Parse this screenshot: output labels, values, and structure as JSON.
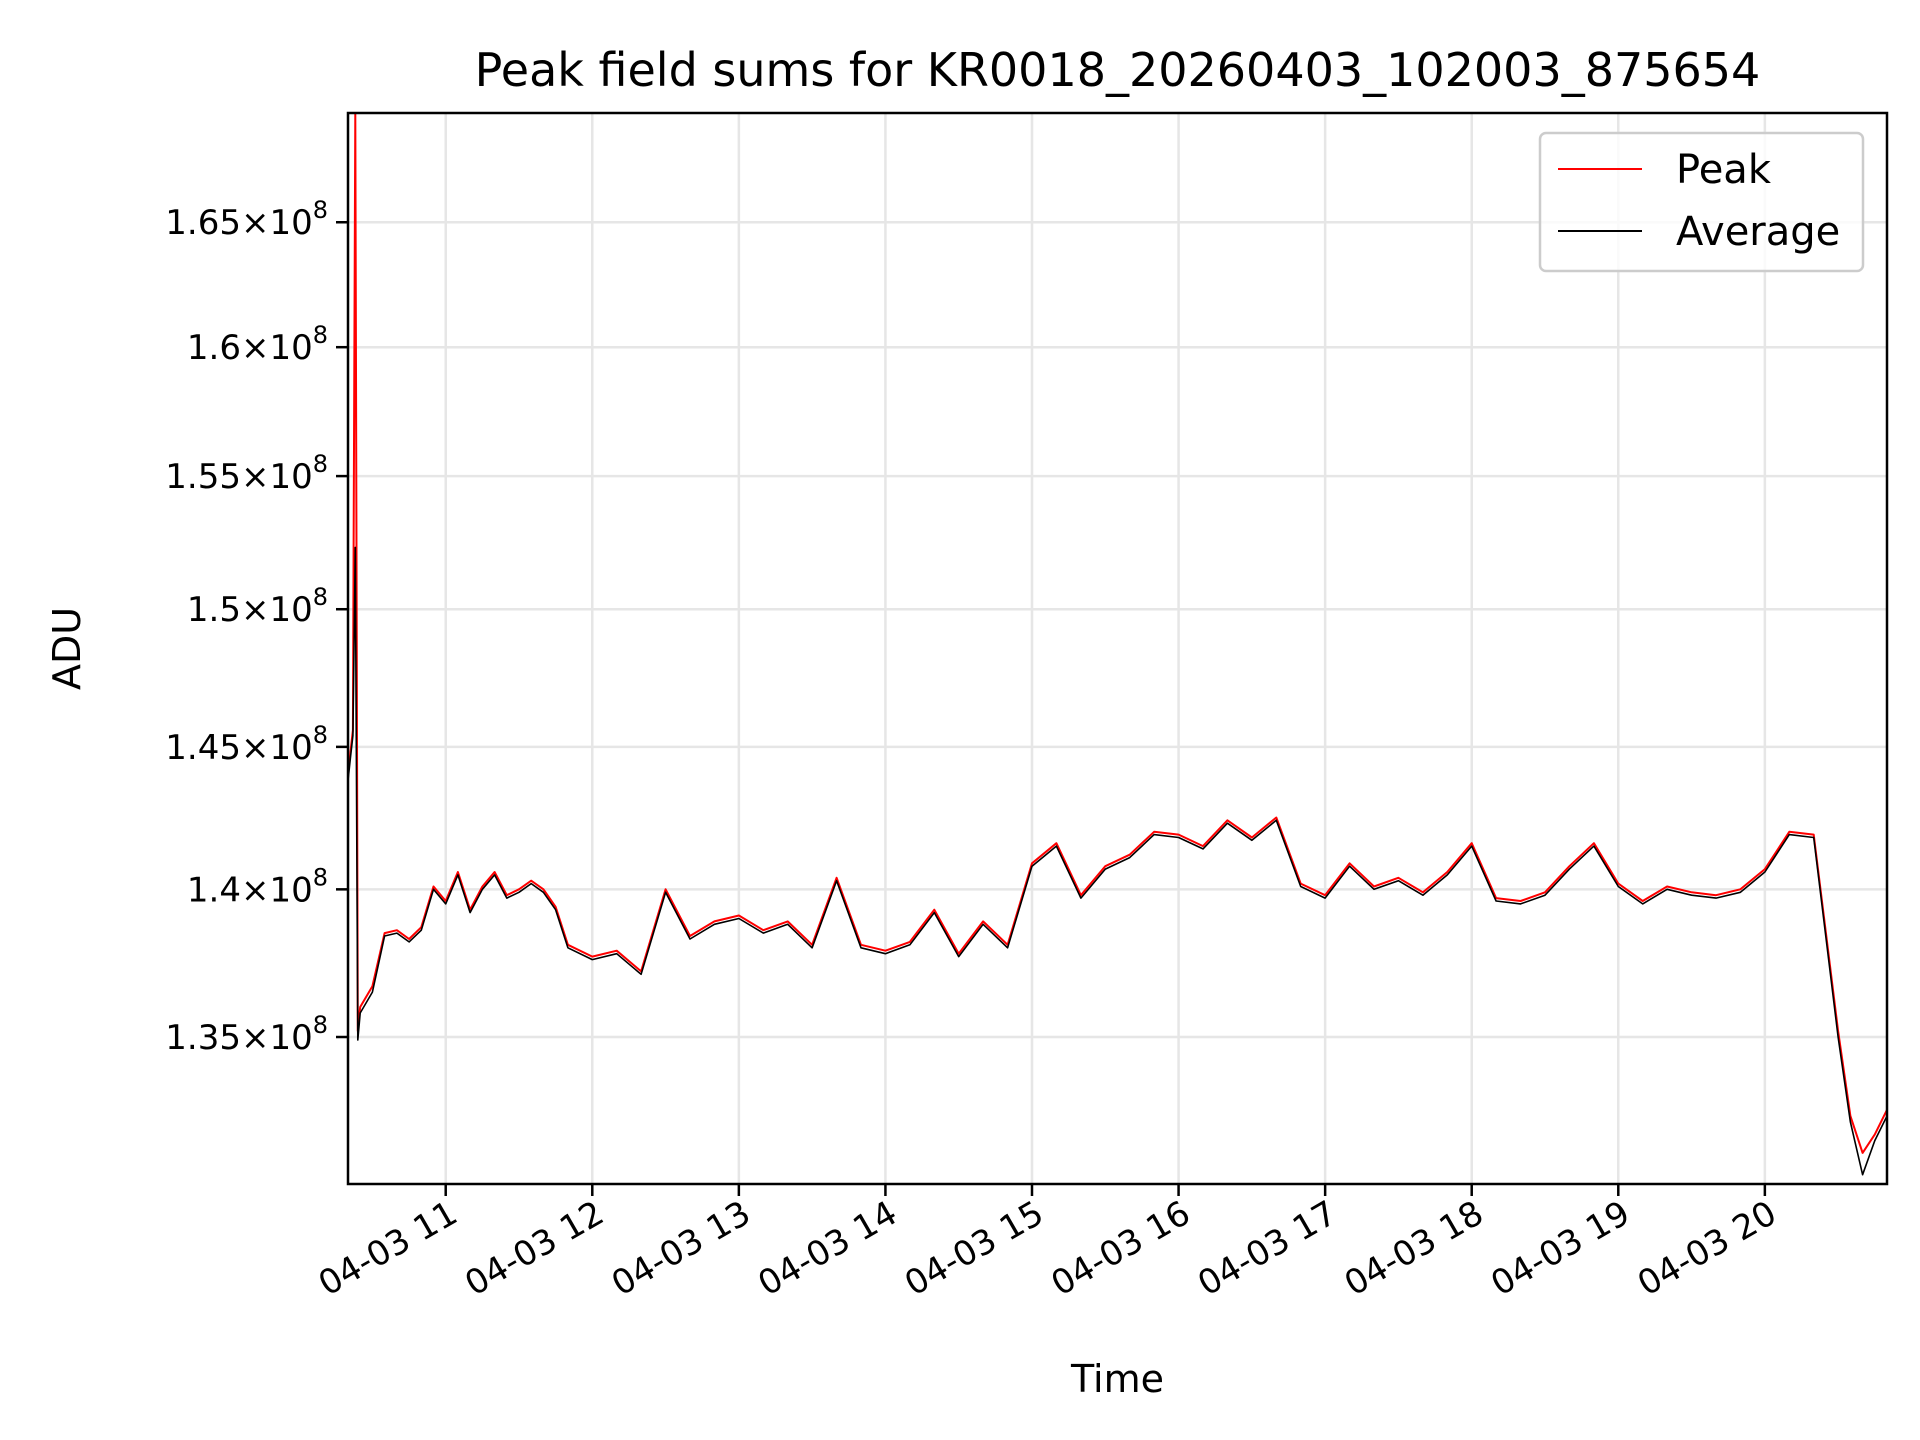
{
  "chart_data": {
    "type": "line",
    "title": "Peak field sums for KR0018_20260403_102003_875654",
    "xlabel": "Time",
    "ylabel": "ADU",
    "x_range": [
      "04-03 10:20",
      "04-03 20:50"
    ],
    "ylim": [
      130200000,
      169500000
    ],
    "y_scale": "log",
    "grid": true,
    "legend_position": "top-right",
    "x_ticks": [
      "04-03 11",
      "04-03 12",
      "04-03 13",
      "04-03 14",
      "04-03 15",
      "04-03 16",
      "04-03 17",
      "04-03 18",
      "04-03 19",
      "04-03 20"
    ],
    "y_ticks": [
      {
        "value": 135000000,
        "mantissa": "1.35",
        "exp": "8"
      },
      {
        "value": 140000000,
        "mantissa": "1.4",
        "exp": "8"
      },
      {
        "value": 145000000,
        "mantissa": "1.45",
        "exp": "8"
      },
      {
        "value": 150000000,
        "mantissa": "1.5",
        "exp": "8"
      },
      {
        "value": 155000000,
        "mantissa": "1.55",
        "exp": "8"
      },
      {
        "value": 160000000,
        "mantissa": "1.6",
        "exp": "8"
      },
      {
        "value": 165000000,
        "mantissa": "1.65",
        "exp": "8"
      }
    ],
    "x": [
      "04-03 10:20",
      "04-03 10:21",
      "04-03 10:22",
      "04-03 10:23",
      "04-03 10:24",
      "04-03 10:25",
      "04-03 10:30",
      "04-03 10:35",
      "04-03 10:40",
      "04-03 10:45",
      "04-03 10:50",
      "04-03 10:55",
      "04-03 11:00",
      "04-03 11:05",
      "04-03 11:10",
      "04-03 11:15",
      "04-03 11:20",
      "04-03 11:25",
      "04-03 11:30",
      "04-03 11:35",
      "04-03 11:40",
      "04-03 11:45",
      "04-03 11:50",
      "04-03 12:00",
      "04-03 12:10",
      "04-03 12:20",
      "04-03 12:30",
      "04-03 12:40",
      "04-03 12:50",
      "04-03 13:00",
      "04-03 13:10",
      "04-03 13:20",
      "04-03 13:30",
      "04-03 13:40",
      "04-03 13:50",
      "04-03 14:00",
      "04-03 14:10",
      "04-03 14:20",
      "04-03 14:30",
      "04-03 14:40",
      "04-03 14:50",
      "04-03 15:00",
      "04-03 15:10",
      "04-03 15:20",
      "04-03 15:30",
      "04-03 15:40",
      "04-03 15:50",
      "04-03 16:00",
      "04-03 16:10",
      "04-03 16:20",
      "04-03 16:30",
      "04-03 16:40",
      "04-03 16:50",
      "04-03 17:00",
      "04-03 17:10",
      "04-03 17:20",
      "04-03 17:30",
      "04-03 17:40",
      "04-03 17:50",
      "04-03 18:00",
      "04-03 18:10",
      "04-03 18:20",
      "04-03 18:30",
      "04-03 18:40",
      "04-03 18:50",
      "04-03 19:00",
      "04-03 19:10",
      "04-03 19:20",
      "04-03 19:30",
      "04-03 19:40",
      "04-03 19:50",
      "04-03 20:00",
      "04-03 20:10",
      "04-03 20:20",
      "04-03 20:30",
      "04-03 20:35",
      "04-03 20:40",
      "04-03 20:45",
      "04-03 20:50"
    ],
    "series": [
      {
        "name": "Peak",
        "color": "#ff0000",
        "values": [
          144000000,
          144800000,
          145600000,
          169500000,
          135200000,
          136000000,
          136700000,
          138500000,
          138600000,
          138300000,
          138700000,
          140100000,
          139600000,
          140600000,
          139300000,
          140100000,
          140600000,
          139800000,
          140000000,
          140300000,
          140000000,
          139400000,
          138100000,
          137700000,
          137900000,
          137200000,
          140000000,
          138400000,
          138900000,
          139100000,
          138600000,
          138900000,
          138100000,
          140400000,
          138100000,
          137900000,
          138200000,
          139300000,
          137800000,
          138900000,
          138100000,
          140900000,
          141600000,
          139800000,
          140800000,
          141200000,
          142000000,
          141900000,
          141500000,
          142400000,
          141800000,
          142500000,
          140200000,
          139800000,
          140900000,
          140100000,
          140400000,
          139900000,
          140600000,
          141600000,
          139700000,
          139600000,
          139900000,
          140800000,
          141600000,
          140200000,
          139600000,
          140100000,
          139900000,
          139800000,
          140000000,
          140700000,
          142000000,
          141900000,
          135200000,
          132400000,
          131200000,
          131800000,
          132600000
        ]
      },
      {
        "name": "Average",
        "color": "#000000",
        "values": [
          143800000,
          144600000,
          145400000,
          152300000,
          134900000,
          135800000,
          136500000,
          138400000,
          138500000,
          138200000,
          138600000,
          140000000,
          139500000,
          140500000,
          139200000,
          140000000,
          140500000,
          139700000,
          139900000,
          140200000,
          139900000,
          139300000,
          138000000,
          137600000,
          137800000,
          137100000,
          139900000,
          138300000,
          138800000,
          139000000,
          138500000,
          138800000,
          138000000,
          140300000,
          138000000,
          137800000,
          138100000,
          139200000,
          137700000,
          138800000,
          138000000,
          140800000,
          141500000,
          139700000,
          140700000,
          141100000,
          141900000,
          141800000,
          141400000,
          142300000,
          141700000,
          142400000,
          140100000,
          139700000,
          140800000,
          140000000,
          140300000,
          139800000,
          140500000,
          141500000,
          139600000,
          139500000,
          139800000,
          140700000,
          141500000,
          140100000,
          139500000,
          140000000,
          139800000,
          139700000,
          139900000,
          140600000,
          141900000,
          141800000,
          135000000,
          132200000,
          130500000,
          131600000,
          132400000
        ]
      }
    ]
  }
}
